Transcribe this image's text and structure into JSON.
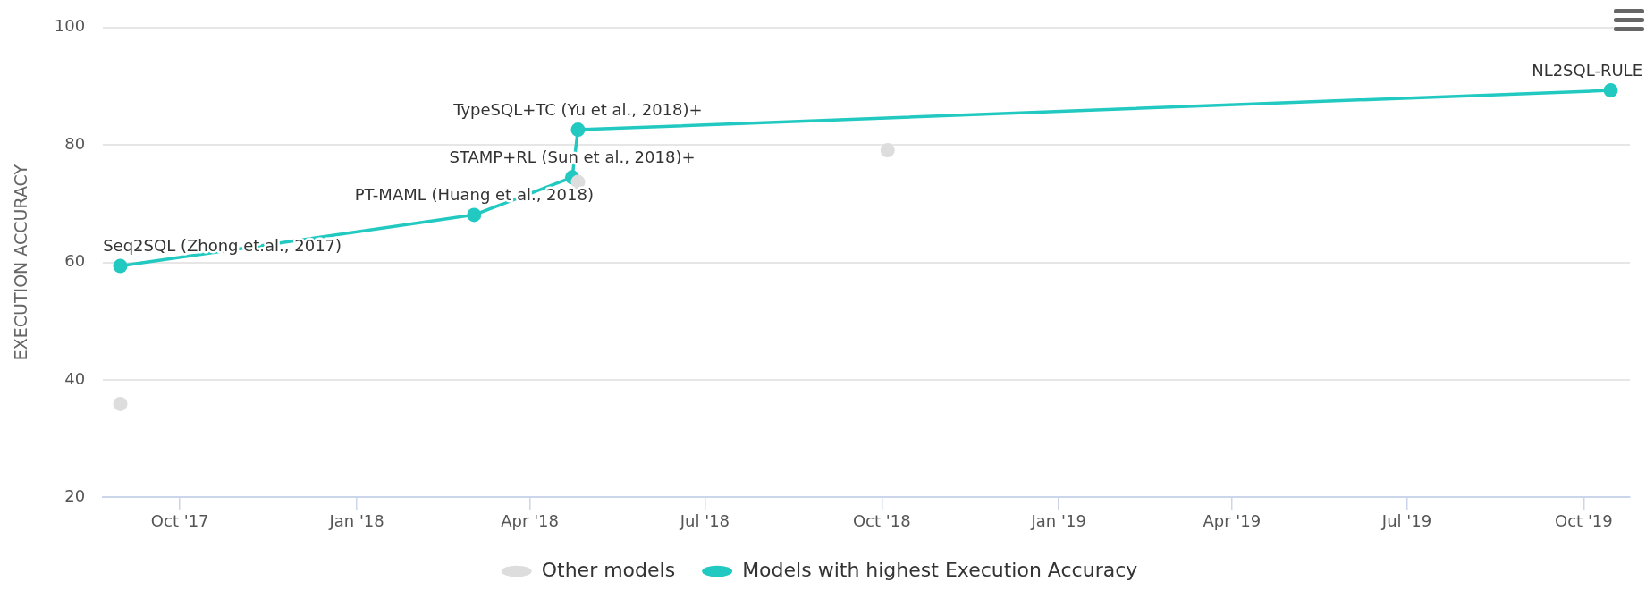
{
  "chart_data": {
    "type": "scatter",
    "ylabel": "EXECUTION ACCURACY",
    "xlim": [
      "2017-08-22",
      "2019-10-25"
    ],
    "xticks": [
      {
        "value": "2017-10-01",
        "label": "Oct '17"
      },
      {
        "value": "2018-01-01",
        "label": "Jan '18"
      },
      {
        "value": "2018-04-01",
        "label": "Apr '18"
      },
      {
        "value": "2018-07-01",
        "label": "Jul '18"
      },
      {
        "value": "2018-10-01",
        "label": "Oct '18"
      },
      {
        "value": "2019-01-01",
        "label": "Jan '19"
      },
      {
        "value": "2019-04-01",
        "label": "Apr '19"
      },
      {
        "value": "2019-07-01",
        "label": "Jul '19"
      },
      {
        "value": "2019-10-01",
        "label": "Oct '19"
      }
    ],
    "ylim": [
      20,
      100
    ],
    "yticks": [
      20,
      40,
      60,
      80,
      100
    ],
    "grid": "y",
    "legend": "bottom",
    "series": [
      {
        "name": "Other models",
        "type": "scatter",
        "color": "#dddddd",
        "marker": "circle",
        "x": [
          "2017-08-31",
          "2018-04-26",
          "2018-10-04"
        ],
        "values": [
          35.9,
          73.7,
          79.1
        ]
      },
      {
        "name": "Models with highest Execution Accuracy",
        "type": "line",
        "color": "#22c9c1",
        "marker": "circle",
        "line_style": "solid",
        "x": [
          "2017-08-31",
          "2018-03-03",
          "2018-04-23",
          "2018-04-26",
          "2019-10-15"
        ],
        "values": [
          59.4,
          68.1,
          74.5,
          82.6,
          89.3
        ]
      }
    ],
    "annotations": [
      {
        "text": "Seq2SQL (Zhong et.al., 2017)",
        "x": "2017-08-31",
        "y": 59.4
      },
      {
        "text": "PT-MAML (Huang et al., 2018)",
        "x": "2018-03-03",
        "y": 68.1
      },
      {
        "text": "STAMP+RL (Sun et al., 2018)+",
        "x": "2018-04-23",
        "y": 74.5
      },
      {
        "text": "TypeSQL+TC (Yu et al., 2018)+",
        "x": "2018-04-26",
        "y": 82.6
      },
      {
        "text": "NL2SQL-RULE",
        "x": "2019-10-15",
        "y": 89.3
      }
    ]
  }
}
